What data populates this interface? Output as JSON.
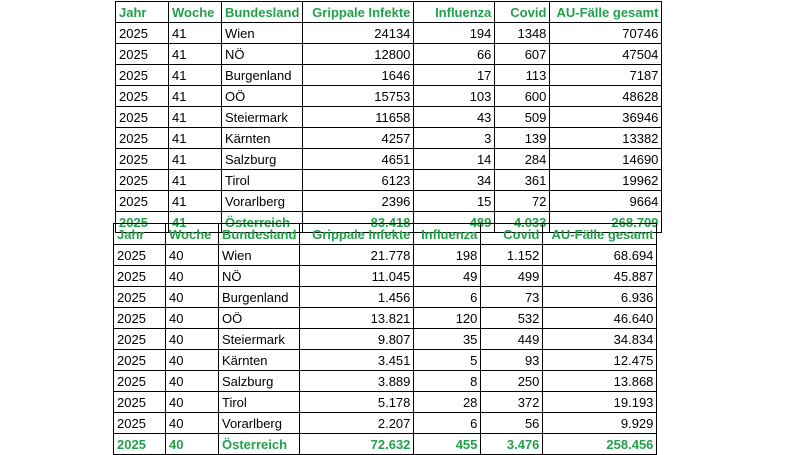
{
  "tables": [
    {
      "headers": [
        "Jahr",
        "Woche",
        "Bundesland",
        "Grippale Infekte",
        "Influenza",
        "Covid",
        "AU-Fälle gesamt"
      ],
      "rows": [
        [
          "2025",
          "41",
          "Wien",
          "24134",
          "194",
          "1348",
          "70746"
        ],
        [
          "2025",
          "41",
          "NÖ",
          "12800",
          "66",
          "607",
          "47504"
        ],
        [
          "2025",
          "41",
          "Burgenland",
          "1646",
          "17",
          "113",
          "7187"
        ],
        [
          "2025",
          "41",
          "OÖ",
          "15753",
          "103",
          "600",
          "48628"
        ],
        [
          "2025",
          "41",
          "Steiermark",
          "11658",
          "43",
          "509",
          "36946"
        ],
        [
          "2025",
          "41",
          "Kärnten",
          "4257",
          "3",
          "139",
          "13382"
        ],
        [
          "2025",
          "41",
          "Salzburg",
          "4651",
          "14",
          "284",
          "14690"
        ],
        [
          "2025",
          "41",
          "Tirol",
          "6123",
          "34",
          "361",
          "19962"
        ],
        [
          "2025",
          "41",
          "Vorarlberg",
          "2396",
          "15",
          "72",
          "9664"
        ]
      ],
      "total": [
        "2025",
        "41",
        "Österreich",
        "83.418",
        "489",
        "4.033",
        "268.709"
      ]
    },
    {
      "headers": [
        "Jahr",
        "Woche",
        "Bundesland",
        "Grippale Infekte",
        "Influenza",
        "Covid",
        "AU-Fälle gesamt"
      ],
      "rows": [
        [
          "2025",
          "40",
          "Wien",
          "21.778",
          "198",
          "1.152",
          "68.694"
        ],
        [
          "2025",
          "40",
          "NÖ",
          "11.045",
          "49",
          "499",
          "45.887"
        ],
        [
          "2025",
          "40",
          "Burgenland",
          "1.456",
          "6",
          "73",
          "6.936"
        ],
        [
          "2025",
          "40",
          "OÖ",
          "13.821",
          "120",
          "532",
          "46.640"
        ],
        [
          "2025",
          "40",
          "Steiermark",
          "9.807",
          "35",
          "449",
          "34.834"
        ],
        [
          "2025",
          "40",
          "Kärnten",
          "3.451",
          "5",
          "93",
          "12.475"
        ],
        [
          "2025",
          "40",
          "Salzburg",
          "3.889",
          "8",
          "250",
          "13.868"
        ],
        [
          "2025",
          "40",
          "Tirol",
          "5.178",
          "28",
          "372",
          "19.193"
        ],
        [
          "2025",
          "40",
          "Vorarlberg",
          "2.207",
          "6",
          "56",
          "9.929"
        ]
      ],
      "total": [
        "2025",
        "40",
        "Österreich",
        "72.632",
        "455",
        "3.476",
        "258.456"
      ]
    }
  ]
}
